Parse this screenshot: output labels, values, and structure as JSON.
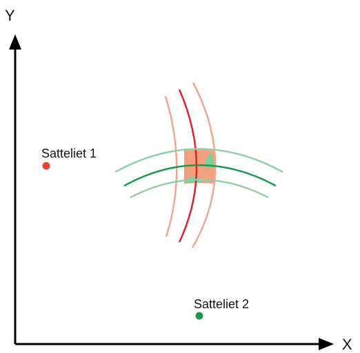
{
  "axes": {
    "y_label": "Y",
    "x_label": "X",
    "color": "#000000"
  },
  "satellites": [
    {
      "label": "Satteliet 1",
      "color": "#e8422b"
    },
    {
      "label": "Satteliet 2",
      "color": "#1a9a4a"
    }
  ],
  "colors": {
    "sat1_range_center": "#e0202a",
    "sat1_range_band": "#f4a58c",
    "sat2_range_center": "#1a9a4a",
    "sat2_range_band": "#8fd0a8",
    "intersection_fill": "#f4a07e",
    "intersection_overlap": "#7fcf9c"
  }
}
